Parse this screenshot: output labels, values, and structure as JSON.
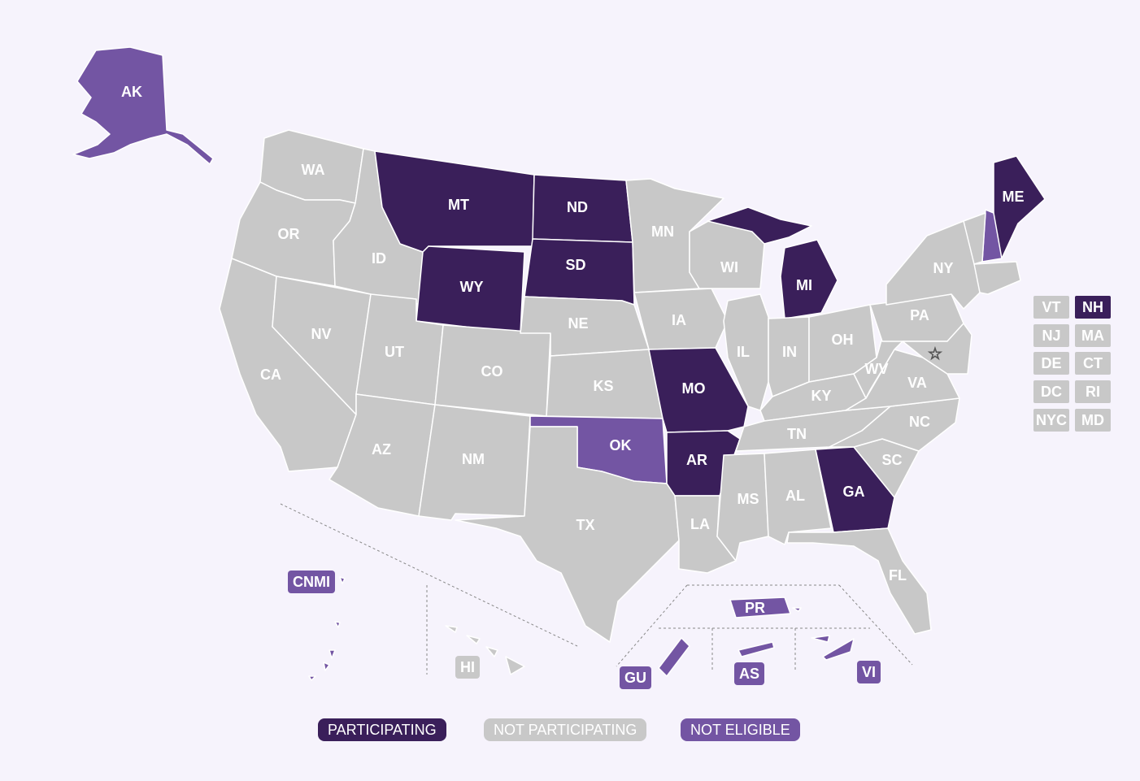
{
  "colors": {
    "participating": "#3a1f5a",
    "not_participating": "#c8c8c8",
    "not_eligible": "#7355a3",
    "background": "#f6f3fc"
  },
  "states": [
    {
      "code": "AK",
      "status": "not_eligible"
    },
    {
      "code": "WA",
      "status": "not_participating"
    },
    {
      "code": "OR",
      "status": "not_participating"
    },
    {
      "code": "CA",
      "status": "not_participating"
    },
    {
      "code": "NV",
      "status": "not_participating"
    },
    {
      "code": "ID",
      "status": "not_participating"
    },
    {
      "code": "MT",
      "status": "participating"
    },
    {
      "code": "WY",
      "status": "participating"
    },
    {
      "code": "UT",
      "status": "not_participating"
    },
    {
      "code": "AZ",
      "status": "not_participating"
    },
    {
      "code": "CO",
      "status": "not_participating"
    },
    {
      "code": "NM",
      "status": "not_participating"
    },
    {
      "code": "ND",
      "status": "participating"
    },
    {
      "code": "SD",
      "status": "participating"
    },
    {
      "code": "NE",
      "status": "not_participating"
    },
    {
      "code": "KS",
      "status": "not_participating"
    },
    {
      "code": "OK",
      "status": "not_eligible"
    },
    {
      "code": "TX",
      "status": "not_participating"
    },
    {
      "code": "MN",
      "status": "not_participating"
    },
    {
      "code": "IA",
      "status": "not_participating"
    },
    {
      "code": "MO",
      "status": "participating"
    },
    {
      "code": "AR",
      "status": "participating"
    },
    {
      "code": "LA",
      "status": "not_participating"
    },
    {
      "code": "WI",
      "status": "not_participating"
    },
    {
      "code": "IL",
      "status": "not_participating"
    },
    {
      "code": "MI",
      "status": "participating"
    },
    {
      "code": "IN",
      "status": "not_participating"
    },
    {
      "code": "OH",
      "status": "not_participating"
    },
    {
      "code": "KY",
      "status": "not_participating"
    },
    {
      "code": "TN",
      "status": "not_participating"
    },
    {
      "code": "MS",
      "status": "not_participating"
    },
    {
      "code": "AL",
      "status": "not_participating"
    },
    {
      "code": "GA",
      "status": "participating"
    },
    {
      "code": "FL",
      "status": "not_participating"
    },
    {
      "code": "SC",
      "status": "not_participating"
    },
    {
      "code": "NC",
      "status": "not_participating"
    },
    {
      "code": "VA",
      "status": "not_participating"
    },
    {
      "code": "WV",
      "status": "not_participating"
    },
    {
      "code": "PA",
      "status": "not_participating"
    },
    {
      "code": "NY",
      "status": "not_participating"
    },
    {
      "code": "ME",
      "status": "participating"
    },
    {
      "code": "HI",
      "status": "not_participating"
    }
  ],
  "small_states": [
    {
      "code": "VT",
      "status": "not_participating"
    },
    {
      "code": "NH",
      "status": "participating"
    },
    {
      "code": "NJ",
      "status": "not_participating"
    },
    {
      "code": "MA",
      "status": "not_participating"
    },
    {
      "code": "DE",
      "status": "not_participating"
    },
    {
      "code": "CT",
      "status": "not_participating"
    },
    {
      "code": "DC",
      "status": "not_participating"
    },
    {
      "code": "RI",
      "status": "not_participating"
    },
    {
      "code": "NYC",
      "status": "not_participating"
    },
    {
      "code": "MD",
      "status": "not_participating"
    }
  ],
  "territories": [
    {
      "code": "CNMI",
      "status": "not_eligible"
    },
    {
      "code": "GU",
      "status": "not_eligible"
    },
    {
      "code": "AS",
      "status": "not_eligible"
    },
    {
      "code": "VI",
      "status": "not_eligible"
    },
    {
      "code": "PR",
      "status": "not_eligible"
    },
    {
      "code": "HI",
      "status": "not_participating"
    }
  ],
  "legend": [
    {
      "key": "participating",
      "label": "PARTICIPATING"
    },
    {
      "key": "not_participating",
      "label": "NOT PARTICIPATING"
    },
    {
      "key": "not_eligible",
      "label": "NOT ELIGIBLE"
    }
  ]
}
